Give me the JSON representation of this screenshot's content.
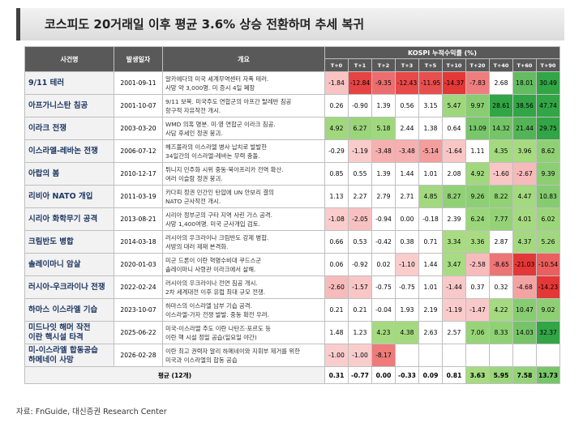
{
  "title": "코스피도 20거래일 이후 평균 3.6% 상승 전환하며 추세 복귀",
  "table": {
    "columns": [
      "사건명",
      "발생일자",
      "개요"
    ],
    "group_header": "KOSPI 누적수익률 (%)",
    "periods": [
      "T+0",
      "T+1",
      "T+2",
      "T+3",
      "T+5",
      "T+10",
      "T+20",
      "T+40",
      "T+60",
      "T+90"
    ],
    "rows": [
      {
        "name": [
          "9/11 테러"
        ],
        "date": "2001-09-11",
        "summary": [
          "알카에다의 미국 세계무역센터 자폭 테러.",
          "사망 약 3,000명. 미 증시 4일 폐장"
        ],
        "values": [
          -1.84,
          -12.84,
          -9.35,
          -12.43,
          -11.95,
          -14.37,
          -7.83,
          2.68,
          18.01,
          30.49
        ]
      },
      {
        "name": [
          "아프가니스탄 침공"
        ],
        "date": "2001-10-07",
        "summary": [
          "9/11 보복. 미국주도 연합군의 아프간 탈레반 침공",
          "항구적 자유작전 개시."
        ],
        "values": [
          0.26,
          -0.9,
          1.39,
          0.56,
          3.15,
          5.47,
          9.97,
          28.61,
          38.56,
          47.74
        ]
      },
      {
        "name": [
          "이라크 전쟁"
        ],
        "date": "2003-03-20",
        "summary": [
          "WMD 의혹 명분. 미·영 연합군 이라크 침공.",
          "사담 후세인 정권 붕괴."
        ],
        "values": [
          4.92,
          6.27,
          5.18,
          2.44,
          1.38,
          0.64,
          13.09,
          14.32,
          21.44,
          29.75
        ]
      },
      {
        "name": [
          "이스라엘-레바논 전쟁"
        ],
        "date": "2006-07-12",
        "summary": [
          "헤즈볼라의 이스라엘 병사 납치로 발발한",
          "34일간의 이스라엘-레바논 무력 충돌."
        ],
        "values": [
          -0.29,
          -1.19,
          -3.48,
          -3.48,
          -5.14,
          -1.64,
          1.11,
          4.35,
          3.96,
          8.62
        ]
      },
      {
        "name": [
          "아랍의 봄"
        ],
        "date": "2010-12-17",
        "summary": [
          "튀니지 민주화 시위 중동·북아프리카 전역 확산.",
          "여러 이슬람 정권 붕괴."
        ],
        "values": [
          0.85,
          0.55,
          1.39,
          1.44,
          1.01,
          2.08,
          4.92,
          -1.6,
          -2.67,
          9.39
        ]
      },
      {
        "name": [
          "리비아 NATO 개입"
        ],
        "date": "2011-03-19",
        "summary": [
          "카다피 정권 민간인 탄압에 UN 안보리 결의",
          "NATO 군사작전 개시."
        ],
        "values": [
          1.13,
          2.27,
          2.79,
          2.71,
          4.85,
          8.27,
          9.26,
          8.22,
          4.47,
          10.83
        ]
      },
      {
        "name": [
          "시리아 화학무기 공격"
        ],
        "date": "2013-08-21",
        "summary": [
          "시리아 정부군의 구타 지역 사린 가스 공격.",
          "사망 1,400여명. 미국 군사개입 검토."
        ],
        "values": [
          -1.08,
          -2.05,
          -0.94,
          0.0,
          -0.18,
          2.39,
          6.24,
          7.77,
          4.01,
          6.02
        ]
      },
      {
        "name": [
          "크림반도 병합"
        ],
        "date": "2014-03-18",
        "summary": [
          "러시아의 우크라이나 크림반도 강제 병합.",
          "서방의 대러 제재 본격화."
        ],
        "values": [
          0.66,
          0.53,
          -0.42,
          0.38,
          0.71,
          3.34,
          3.36,
          2.87,
          4.37,
          5.26
        ]
      },
      {
        "name": [
          "솔레이마니 암살"
        ],
        "date": "2020-01-03",
        "summary": [
          "미군 드론이 이란 혁명수비대 쿠드스군",
          "솔레이마니 사령관 이라크에서 살해."
        ],
        "values": [
          0.06,
          -0.92,
          0.02,
          -1.1,
          1.44,
          3.47,
          -2.58,
          -8.65,
          -21.03,
          -10.54
        ]
      },
      {
        "name": [
          "러시아-우크라이나 전쟁"
        ],
        "date": "2022-02-24",
        "summary": [
          "러시아의 우크라이나 전면 침공 개시.",
          "2차 세계대전 이후 유럽 최대 규모 전쟁."
        ],
        "values": [
          -2.6,
          -1.57,
          -0.75,
          -0.75,
          1.01,
          -1.44,
          0.37,
          0.32,
          -4.68,
          -14.23
        ]
      },
      {
        "name": [
          "하마스 이스라엘 기습"
        ],
        "date": "2023-10-07",
        "summary": [
          "하마스의 이스라엘 남부 기습 공격.",
          "이스라엘-가자 전쟁 발발. 중동 확전 우려."
        ],
        "values": [
          0.21,
          0.21,
          -0.04,
          1.93,
          2.19,
          -1.19,
          -1.47,
          4.22,
          10.47,
          9.02
        ]
      },
      {
        "name": [
          "미드나잇 해머 작전",
          "이란 핵시설 타격"
        ],
        "date": "2025-06-22",
        "summary": [
          "미국-이스라엘 주도 이란 나탄즈·포르도 등",
          "이란 핵 시설 정밀 공습(일요일 야간)"
        ],
        "values": [
          1.48,
          1.23,
          4.23,
          4.38,
          2.63,
          2.57,
          7.06,
          8.33,
          14.03,
          32.37
        ]
      },
      {
        "name": [
          "미-이스라엘 합동공습",
          "하메네이 사망"
        ],
        "date": "2026-02-28",
        "summary": [
          "이란 최고 권력자 알리 하메네이와 지휘부 제거를 위한",
          "미국과 이스라엘의 합동 공습"
        ],
        "values": [
          -1.0,
          -1.0,
          -8.17,
          null,
          null,
          null,
          null,
          null,
          null,
          null
        ]
      }
    ],
    "average": {
      "label": "평균 (12개)",
      "values": [
        0.31,
        -0.77,
        0.0,
        -0.33,
        0.09,
        0.81,
        3.63,
        5.95,
        7.58,
        13.73
      ]
    }
  },
  "source": "자료: FnGuide, 대신증권 Research Center"
}
